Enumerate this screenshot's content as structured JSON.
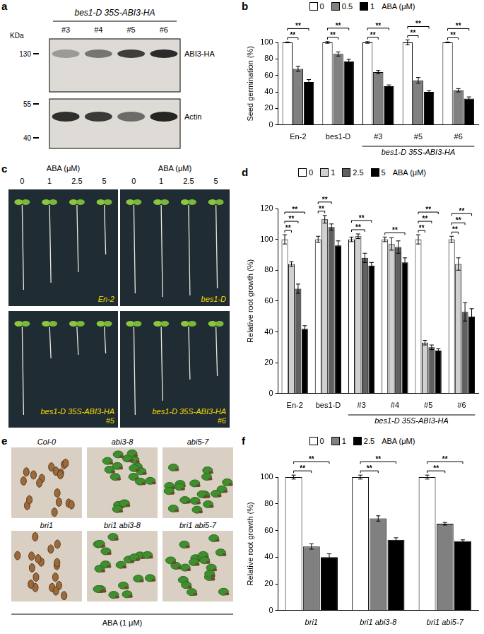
{
  "blot": {
    "panel": "a",
    "title": "bes1-D 35S-ABI3-HA",
    "lanes": [
      "#3",
      "#4",
      "#5",
      "#6"
    ],
    "unit": "KDa",
    "markers": [
      130,
      55,
      40
    ],
    "bands": [
      "ABI3-HA",
      "Actin"
    ]
  },
  "seedlings": {
    "panel": "c",
    "axis_title": "ABA (μM)",
    "doses": [
      0,
      1,
      2.5,
      5
    ],
    "images": [
      "En-2",
      "bes1-D",
      "bes1-D 35S-ABI3-HA #5",
      "bes1-D 35S-ABI3-HA #6"
    ]
  },
  "seeds": {
    "panel": "e",
    "caption": "ABA (1 μM)",
    "images": [
      {
        "label": "Col-0",
        "germinated": false
      },
      {
        "label": "abi3-8",
        "germinated": true
      },
      {
        "label": "abi5-7",
        "germinated": true
      },
      {
        "label": "bri1",
        "germinated": false
      },
      {
        "label": "bri1 abi3-8",
        "germinated": true
      },
      {
        "label": "bri1 abi5-7",
        "germinated": true
      }
    ]
  },
  "chart_data": [
    {
      "panel": "b",
      "type": "bar",
      "ylabel": "Seed germination (%)",
      "legend": "top",
      "legend_title": "ABA (μM)",
      "grid": false,
      "categories": [
        "En-2",
        "bes1-D",
        "#3",
        "#5",
        "#6"
      ],
      "category_group": {
        "label": "bes1-D 35S-ABI3-HA",
        "from": "#3",
        "to": "#6"
      },
      "series": [
        {
          "name": "0",
          "color": "#ffffff",
          "values": [
            100,
            100,
            100,
            100,
            100
          ],
          "errors": [
            0.5,
            1,
            1,
            3,
            0.5
          ]
        },
        {
          "name": "0.5",
          "color": "#808080",
          "values": [
            68,
            86,
            64,
            54,
            42
          ],
          "errors": [
            3,
            2.5,
            2,
            3.5,
            2
          ]
        },
        {
          "name": "1",
          "color": "#000000",
          "values": [
            52,
            77,
            47,
            40,
            32
          ],
          "errors": [
            3,
            2.5,
            1.5,
            1.5,
            2
          ]
        }
      ],
      "ylim": [
        0,
        100
      ],
      "yticks": [
        0,
        20,
        40,
        60,
        80,
        100
      ],
      "significance": [
        {
          "category": "En-2",
          "series": "0.5",
          "label": "**"
        },
        {
          "category": "En-2",
          "series": "1",
          "label": "**"
        },
        {
          "category": "bes1-D",
          "series": "0.5",
          "label": "**"
        },
        {
          "category": "bes1-D",
          "series": "1",
          "label": "**"
        },
        {
          "category": "#3",
          "series": "0.5",
          "label": "**"
        },
        {
          "category": "#3",
          "series": "1",
          "label": "**"
        },
        {
          "category": "#5",
          "series": "0.5",
          "label": "**"
        },
        {
          "category": "#5",
          "series": "1",
          "label": "**"
        },
        {
          "category": "#6",
          "series": "0.5",
          "label": "**"
        },
        {
          "category": "#6",
          "series": "1",
          "label": "**"
        }
      ]
    },
    {
      "panel": "d",
      "type": "bar",
      "ylabel": "Relative root growth (%)",
      "legend": "top",
      "legend_title": "ABA (μM)",
      "grid": false,
      "categories": [
        "En-2",
        "bes1-D",
        "#3",
        "#4",
        "#5",
        "#6"
      ],
      "category_group": {
        "label": "bes1-D 35S-ABI3-HA",
        "from": "#3",
        "to": "#6"
      },
      "series": [
        {
          "name": "0",
          "color": "#ffffff",
          "values": [
            100,
            100,
            100,
            100,
            100,
            100
          ],
          "errors": [
            3,
            2,
            1.5,
            1.5,
            3,
            2
          ]
        },
        {
          "name": "1",
          "color": "#d0d0d0",
          "values": [
            84,
            113,
            102,
            97,
            33,
            84
          ],
          "errors": [
            1.5,
            2.5,
            1.5,
            4,
            1.5,
            4
          ]
        },
        {
          "name": "2.5",
          "color": "#606060",
          "values": [
            68,
            108,
            88,
            95,
            30,
            53
          ],
          "errors": [
            3,
            2,
            3,
            4,
            1.5,
            6
          ]
        },
        {
          "name": "5",
          "color": "#000000",
          "values": [
            42,
            96,
            83,
            85,
            28,
            50
          ],
          "errors": [
            2,
            3,
            2,
            3,
            1,
            5
          ]
        }
      ],
      "ylim": [
        0,
        120
      ],
      "yticks": [
        0,
        20,
        40,
        60,
        80,
        100,
        120
      ],
      "significance": [
        {
          "category": "En-2",
          "series": "1",
          "label": "**"
        },
        {
          "category": "En-2",
          "series": "2.5",
          "label": "**"
        },
        {
          "category": "En-2",
          "series": "5",
          "label": "**"
        },
        {
          "category": "bes1-D",
          "series": "1",
          "label": "**"
        },
        {
          "category": "bes1-D",
          "series": "2.5",
          "label": "**"
        },
        {
          "category": "#3",
          "series": "2.5",
          "label": "**"
        },
        {
          "category": "#3",
          "series": "5",
          "label": "**"
        },
        {
          "category": "#4",
          "series": "5",
          "label": "**"
        },
        {
          "category": "#5",
          "series": "1",
          "label": "**"
        },
        {
          "category": "#5",
          "series": "2.5",
          "label": "**"
        },
        {
          "category": "#5",
          "series": "5",
          "label": "**"
        },
        {
          "category": "#6",
          "series": "1",
          "label": "**"
        },
        {
          "category": "#6",
          "series": "2.5",
          "label": "**"
        },
        {
          "category": "#6",
          "series": "5",
          "label": "**"
        }
      ]
    },
    {
      "panel": "f",
      "type": "bar",
      "ylabel": "Relative root growth (%)",
      "legend": "top",
      "legend_title": "ABA (μM)",
      "grid": false,
      "categories": [
        "bri1",
        "bri1 abi3-8",
        "bri1 abi5-7"
      ],
      "series": [
        {
          "name": "0",
          "color": "#ffffff",
          "values": [
            100,
            100,
            100
          ],
          "errors": [
            1.5,
            1.5,
            1.5
          ]
        },
        {
          "name": "1",
          "color": "#808080",
          "values": [
            48,
            69,
            65
          ],
          "errors": [
            2,
            2,
            1
          ]
        },
        {
          "name": "2.5",
          "color": "#000000",
          "values": [
            40,
            53,
            52
          ],
          "errors": [
            2.5,
            1.5,
            1
          ]
        }
      ],
      "ylim": [
        0,
        100
      ],
      "yticks": [
        0,
        20,
        40,
        60,
        80,
        100
      ],
      "significance": [
        {
          "category": "bri1",
          "series": "1",
          "label": "**"
        },
        {
          "category": "bri1",
          "series": "2.5",
          "label": "**"
        },
        {
          "category": "bri1 abi3-8",
          "series": "1",
          "label": "**"
        },
        {
          "category": "bri1 abi3-8",
          "series": "2.5",
          "label": "**"
        },
        {
          "category": "bri1 abi5-7",
          "series": "1",
          "label": "**"
        },
        {
          "category": "bri1 abi5-7",
          "series": "2.5",
          "label": "**"
        }
      ]
    }
  ]
}
